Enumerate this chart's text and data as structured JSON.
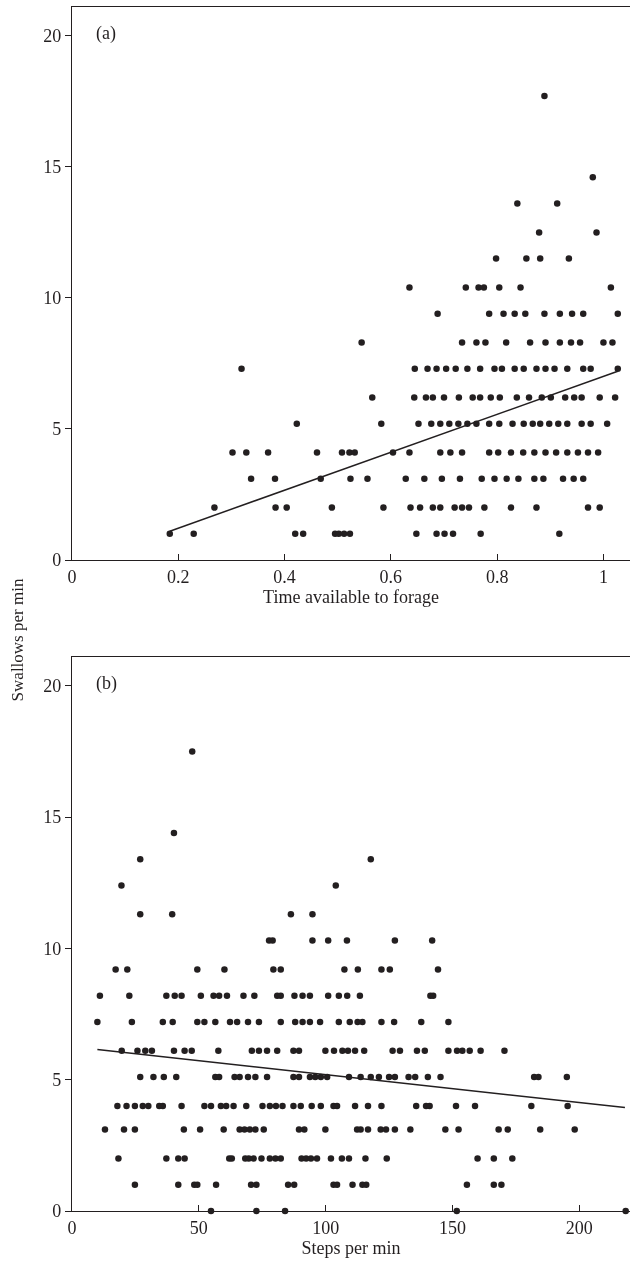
{
  "chart_data": [
    {
      "type": "scatter",
      "xlabel": "Time available to forage",
      "ylabel": "Swallows per min",
      "annotations": [
        "(a)"
      ],
      "xlim": [
        0,
        1.05
      ],
      "ylim": [
        0,
        21.1
      ],
      "xticks": [
        0,
        0.2,
        0.4,
        0.6,
        0.8,
        1
      ],
      "yticks": [
        0,
        5,
        10,
        15,
        20
      ],
      "series": [
        {
          "marker": "circle",
          "color": "#231f20",
          "x": [
            0.184,
            0.229,
            0.42,
            0.435,
            0.495,
            0.502,
            0.512,
            0.523,
            0.648,
            0.686,
            0.701,
            0.717,
            0.769,
            0.917,
            0.268,
            0.383,
            0.404,
            0.489,
            0.586,
            0.637,
            0.655,
            0.679,
            0.693,
            0.72,
            0.734,
            0.747,
            0.776,
            0.826,
            0.874,
            0.971,
            0.993,
            0.337,
            0.382,
            0.468,
            0.524,
            0.556,
            0.628,
            0.663,
            0.696,
            0.73,
            0.771,
            0.795,
            0.818,
            0.84,
            0.87,
            0.887,
            0.924,
            0.944,
            0.962,
            0.302,
            0.328,
            0.369,
            0.461,
            0.508,
            0.522,
            0.532,
            0.604,
            0.635,
            0.693,
            0.712,
            0.734,
            0.785,
            0.802,
            0.826,
            0.849,
            0.87,
            0.891,
            0.911,
            0.932,
            0.952,
            0.971,
            0.99,
            0.423,
            0.582,
            0.652,
            0.676,
            0.693,
            0.71,
            0.727,
            0.744,
            0.761,
            0.785,
            0.804,
            0.829,
            0.85,
            0.867,
            0.881,
            0.898,
            0.915,
            0.932,
            0.959,
            0.976,
            1.007,
            0.565,
            0.644,
            0.666,
            0.679,
            0.7,
            0.728,
            0.754,
            0.768,
            0.788,
            0.805,
            0.837,
            0.86,
            0.884,
            0.901,
            0.928,
            0.945,
            0.959,
            0.993,
            1.022,
            0.319,
            0.645,
            0.669,
            0.686,
            0.704,
            0.722,
            0.744,
            0.768,
            0.795,
            0.809,
            0.833,
            0.85,
            0.874,
            0.891,
            0.908,
            0.932,
            0.962,
            0.976,
            1.027,
            0.545,
            0.734,
            0.761,
            0.778,
            0.817,
            0.862,
            0.891,
            0.918,
            0.939,
            0.956,
            1.0,
            1.017,
            0.688,
            0.785,
            0.812,
            0.833,
            0.853,
            0.889,
            0.918,
            0.941,
            0.962,
            1.027,
            0.635,
            0.741,
            0.765,
            0.775,
            0.804,
            0.844,
            1.014,
            0.798,
            0.855,
            0.881,
            0.935,
            0.879,
            0.987,
            0.838,
            0.913,
            0.98,
            0.889
          ],
          "values": [
            1,
            1,
            1,
            1,
            1,
            1,
            1,
            1,
            1,
            1,
            1,
            1,
            1,
            1,
            2,
            2,
            2,
            2,
            2,
            2,
            2,
            2,
            2,
            2,
            2,
            2,
            2,
            2,
            2,
            2,
            2,
            3.1,
            3.1,
            3.1,
            3.1,
            3.1,
            3.1,
            3.1,
            3.1,
            3.1,
            3.1,
            3.1,
            3.1,
            3.1,
            3.1,
            3.1,
            3.1,
            3.1,
            3.1,
            4.1,
            4.1,
            4.1,
            4.1,
            4.1,
            4.1,
            4.1,
            4.1,
            4.1,
            4.1,
            4.1,
            4.1,
            4.1,
            4.1,
            4.1,
            4.1,
            4.1,
            4.1,
            4.1,
            4.1,
            4.1,
            4.1,
            4.1,
            5.2,
            5.2,
            5.2,
            5.2,
            5.2,
            5.2,
            5.2,
            5.2,
            5.2,
            5.2,
            5.2,
            5.2,
            5.2,
            5.2,
            5.2,
            5.2,
            5.2,
            5.2,
            5.2,
            5.2,
            5.2,
            6.2,
            6.2,
            6.2,
            6.2,
            6.2,
            6.2,
            6.2,
            6.2,
            6.2,
            6.2,
            6.2,
            6.2,
            6.2,
            6.2,
            6.2,
            6.2,
            6.2,
            6.2,
            6.2,
            7.3,
            7.3,
            7.3,
            7.3,
            7.3,
            7.3,
            7.3,
            7.3,
            7.3,
            7.3,
            7.3,
            7.3,
            7.3,
            7.3,
            7.3,
            7.3,
            7.3,
            7.3,
            7.3,
            8.3,
            8.3,
            8.3,
            8.3,
            8.3,
            8.3,
            8.3,
            8.3,
            8.3,
            8.3,
            8.3,
            8.3,
            9.4,
            9.4,
            9.4,
            9.4,
            9.4,
            9.4,
            9.4,
            9.4,
            9.4,
            9.4,
            10.4,
            10.4,
            10.4,
            10.4,
            10.4,
            10.4,
            10.4,
            11.5,
            11.5,
            11.5,
            11.5,
            12.5,
            12.5,
            13.6,
            13.6,
            14.6,
            17.7
          ]
        },
        {
          "type": "line",
          "marker": "none",
          "color": "#231f20",
          "x": [
            0.184,
            1.027
          ],
          "values": [
            1.1,
            7.2
          ]
        }
      ]
    },
    {
      "type": "scatter",
      "xlabel": "Steps per min",
      "annotations": [
        "(b)"
      ],
      "xlim": [
        0,
        220
      ],
      "ylim": [
        0,
        21.1
      ],
      "xticks": [
        0,
        50,
        100,
        150,
        200
      ],
      "yticks": [
        0,
        5,
        10,
        15,
        20
      ],
      "series": [
        {
          "marker": "circle",
          "color": "#231f20",
          "x": [
            47.4,
            40.2,
            26.9,
            117.8,
            19.5,
            104,
            26.9,
            39.5,
            86.3,
            94.8,
            77.7,
            79.1,
            94.8,
            101,
            108.4,
            127.3,
            142,
            17.2,
            21.8,
            49.4,
            60.1,
            79.4,
            82.3,
            107.4,
            112.7,
            122,
            125.3,
            144.3,
            11,
            22.6,
            37.2,
            40.5,
            43.2,
            50.8,
            55.8,
            58,
            61.1,
            67.6,
            71.9,
            80.9,
            82.3,
            87.7,
            90.9,
            93.8,
            101,
            105.2,
            108.5,
            113.5,
            141.3,
            142.4,
            10,
            23.6,
            35.8,
            39.7,
            49.4,
            52.2,
            56.5,
            62.3,
            65.1,
            69.4,
            73.7,
            82.3,
            88,
            90.9,
            93.8,
            97.8,
            105.2,
            109.5,
            112.6,
            114.5,
            122,
            127,
            137.7,
            148.4,
            19.6,
            25.8,
            28.9,
            31.5,
            40.2,
            44.4,
            47.2,
            57.7,
            70.9,
            73.7,
            76.9,
            80.9,
            87.3,
            89.5,
            99.9,
            103.3,
            106.6,
            108.8,
            111.6,
            115.2,
            126.4,
            129.3,
            136,
            139.1,
            148.4,
            151.8,
            153.9,
            156.8,
            161.1,
            170.5,
            26.9,
            32.1,
            36.2,
            41.1,
            56.5,
            58,
            64.1,
            66.1,
            69.4,
            72.3,
            76.9,
            87.3,
            89.5,
            93.8,
            95.9,
            98.1,
            100.6,
            109.2,
            113.8,
            117.8,
            121,
            125,
            127.3,
            132.7,
            135.3,
            140.3,
            145.3,
            182.2,
            183.9,
            195.1,
            17.9,
            21.5,
            24.8,
            27.9,
            30.1,
            34.4,
            35.8,
            43.2,
            52.2,
            54.8,
            58.7,
            60.8,
            63.7,
            68.7,
            75.1,
            78,
            80.4,
            83,
            87.3,
            90.2,
            94.5,
            98.1,
            103.1,
            104.5,
            111.6,
            116.7,
            122,
            135.7,
            139.6,
            141,
            151.4,
            158.9,
            181.1,
            195.4,
            13,
            20.5,
            24.8,
            44.1,
            50.5,
            59.8,
            66.1,
            68,
            70.1,
            72.3,
            75.6,
            89.5,
            91.6,
            99.9,
            112.4,
            113.8,
            116.7,
            121.7,
            123.8,
            127.3,
            133.4,
            147.2,
            152.4,
            168.2,
            171.8,
            184.6,
            198.2,
            18.3,
            37.2,
            41.9,
            44.4,
            62,
            63,
            68.3,
            69.7,
            71.6,
            74.7,
            78,
            80.2,
            82.3,
            90.5,
            92.3,
            94.2,
            96.6,
            102.1,
            106.4,
            109.2,
            115.7,
            124.1,
            159.9,
            166.3,
            173.6,
            24.8,
            41.9,
            48.2,
            49.4,
            56.8,
            70.6,
            72.7,
            85.2,
            87.6,
            103.1,
            104.5,
            110.6,
            114.5,
            116,
            155.7,
            166.3,
            169.3,
            54.8,
            72.7,
            84,
            151.7,
            218.3
          ],
          "values": [
            17.5,
            14.4,
            13.4,
            13.4,
            12.4,
            12.4,
            11.3,
            11.3,
            11.3,
            11.3,
            10.3,
            10.3,
            10.3,
            10.3,
            10.3,
            10.3,
            10.3,
            9.2,
            9.2,
            9.2,
            9.2,
            9.2,
            9.2,
            9.2,
            9.2,
            9.2,
            9.2,
            9.2,
            8.2,
            8.2,
            8.2,
            8.2,
            8.2,
            8.2,
            8.2,
            8.2,
            8.2,
            8.2,
            8.2,
            8.2,
            8.2,
            8.2,
            8.2,
            8.2,
            8.2,
            8.2,
            8.2,
            8.2,
            8.2,
            8.2,
            7.2,
            7.2,
            7.2,
            7.2,
            7.2,
            7.2,
            7.2,
            7.2,
            7.2,
            7.2,
            7.2,
            7.2,
            7.2,
            7.2,
            7.2,
            7.2,
            7.2,
            7.2,
            7.2,
            7.2,
            7.2,
            7.2,
            7.2,
            7.2,
            6.1,
            6.1,
            6.1,
            6.1,
            6.1,
            6.1,
            6.1,
            6.1,
            6.1,
            6.1,
            6.1,
            6.1,
            6.1,
            6.1,
            6.1,
            6.1,
            6.1,
            6.1,
            6.1,
            6.1,
            6.1,
            6.1,
            6.1,
            6.1,
            6.1,
            6.1,
            6.1,
            6.1,
            6.1,
            6.1,
            5.1,
            5.1,
            5.1,
            5.1,
            5.1,
            5.1,
            5.1,
            5.1,
            5.1,
            5.1,
            5.1,
            5.1,
            5.1,
            5.1,
            5.1,
            5.1,
            5.1,
            5.1,
            5.1,
            5.1,
            5.1,
            5.1,
            5.1,
            5.1,
            5.1,
            5.1,
            5.1,
            5.1,
            5.1,
            5.1,
            4,
            4,
            4,
            4,
            4,
            4,
            4,
            4,
            4,
            4,
            4,
            4,
            4,
            4,
            4,
            4,
            4,
            4,
            4,
            4,
            4,
            4,
            4,
            4,
            4,
            4,
            4,
            4,
            4,
            4,
            4,
            4,
            4,
            4,
            3.1,
            3.1,
            3.1,
            3.1,
            3.1,
            3.1,
            3.1,
            3.1,
            3.1,
            3.1,
            3.1,
            3.1,
            3.1,
            3.1,
            3.1,
            3.1,
            3.1,
            3.1,
            3.1,
            3.1,
            3.1,
            3.1,
            3.1,
            3.1,
            3.1,
            3.1,
            3.1,
            2,
            2,
            2,
            2,
            2,
            2,
            2,
            2,
            2,
            2,
            2,
            2,
            2,
            2,
            2,
            2,
            2,
            2,
            2,
            2,
            2,
            2,
            2,
            2,
            2,
            1,
            1,
            1,
            1,
            1,
            1,
            1,
            1,
            1,
            1,
            1,
            1,
            1,
            1,
            1,
            1,
            1,
            0,
            0,
            0,
            0,
            0
          ]
        },
        {
          "type": "line",
          "marker": "none",
          "color": "#231f20",
          "x": [
            10,
            218
          ],
          "values": [
            6.15,
            3.94
          ]
        }
      ]
    }
  ]
}
